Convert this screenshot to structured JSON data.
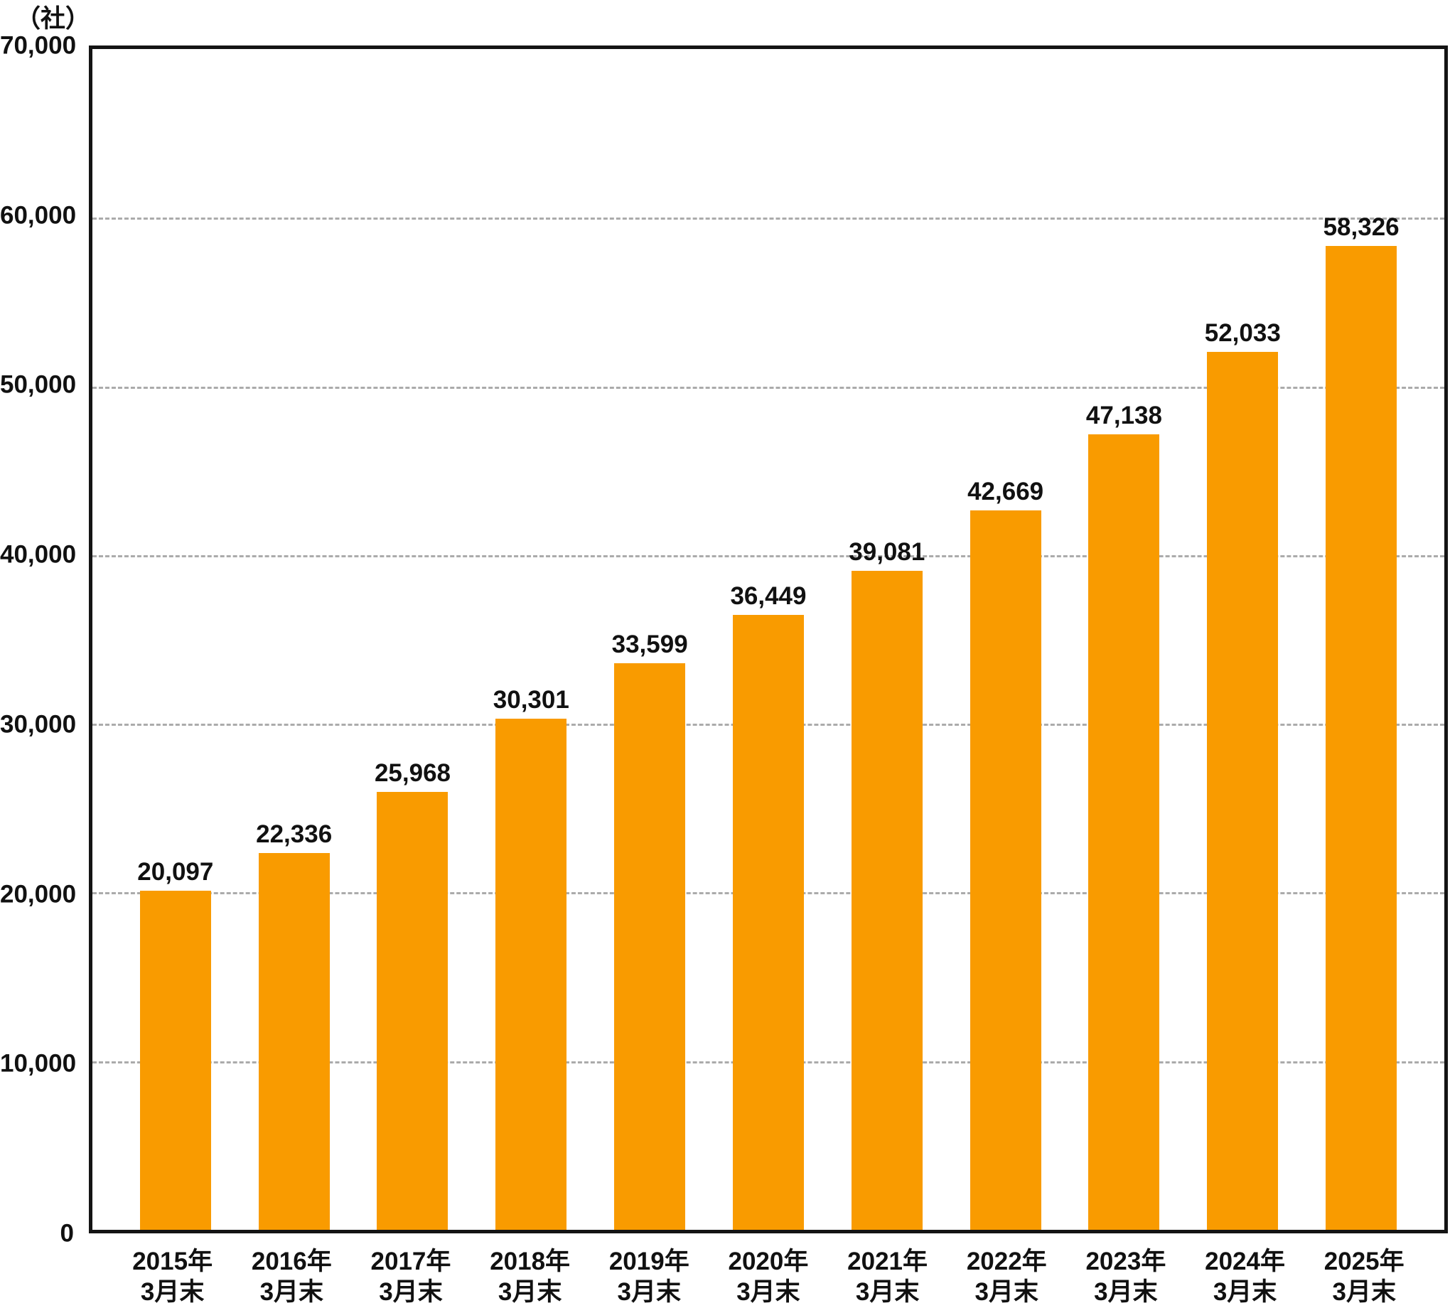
{
  "chart_data": {
    "type": "bar",
    "title": "",
    "unit": "（社）",
    "categories": [
      "2015年\n3月末",
      "2016年\n3月末",
      "2017年\n3月末",
      "2018年\n3月末",
      "2019年\n3月末",
      "2020年\n3月末",
      "2021年\n3月末",
      "2022年\n3月末",
      "2023年\n3月末",
      "2024年\n3月末",
      "2025年\n3月末"
    ],
    "values": [
      20097,
      22336,
      25968,
      30301,
      33599,
      36449,
      39081,
      42669,
      47138,
      52033,
      58326
    ],
    "value_labels": [
      "20,097",
      "22,336",
      "25,968",
      "30,301",
      "33,599",
      "36,449",
      "39,081",
      "42,669",
      "47,138",
      "52,033",
      "58,326"
    ],
    "xlabel": "",
    "ylabel": "（社）",
    "ylim": [
      0,
      70000
    ],
    "yticks": [
      {
        "value": 0,
        "label": "0"
      },
      {
        "value": 10000,
        "label": "10,000"
      },
      {
        "value": 20000,
        "label": "20,000"
      },
      {
        "value": 30000,
        "label": "30,000"
      },
      {
        "value": 40000,
        "label": "40,000"
      },
      {
        "value": 50000,
        "label": "50,000"
      },
      {
        "value": 60000,
        "label": "60,000"
      },
      {
        "value": 70000,
        "label": "70,000"
      }
    ],
    "grid": "horizontal dashed lines at 10,000 intervals, behind bars",
    "legend": "none",
    "bar_color": "#F99B00",
    "grid_color": "#ABABAB",
    "axis_color": "#141414",
    "text_color": "#111111"
  }
}
